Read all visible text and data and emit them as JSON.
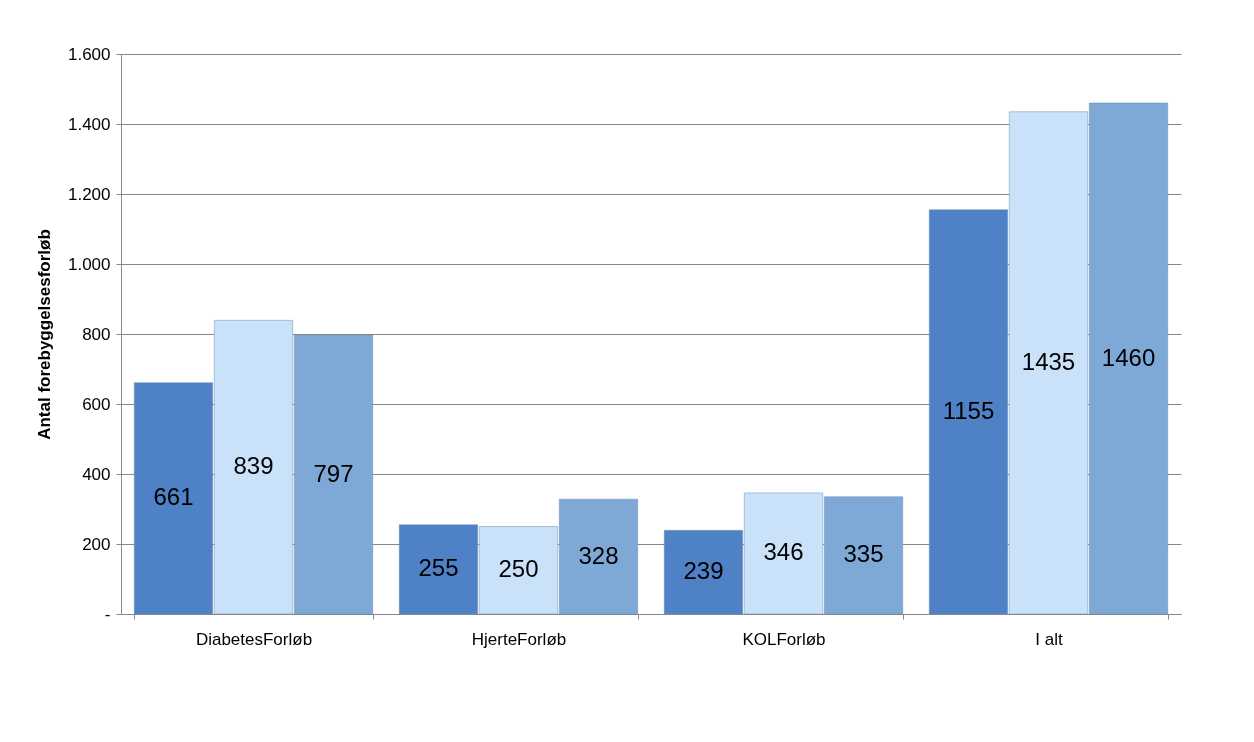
{
  "chart_data": {
    "type": "bar",
    "ylabel": "Antal forebyggelsesforløb",
    "categories": [
      "DiabetesForløb",
      "HjerteForløb",
      "KOLForløb",
      "I alt"
    ],
    "series": [
      {
        "color": "#4f81c7",
        "values": [
          661,
          255,
          239,
          1155
        ]
      },
      {
        "color": "#c9e2fa",
        "values": [
          839,
          250,
          346,
          1435
        ]
      },
      {
        "color": "#7ea8d6",
        "values": [
          797,
          328,
          335,
          1460
        ]
      }
    ],
    "ylim": [
      0,
      1600
    ],
    "yticks": [
      {
        "value": 0,
        "label": "-"
      },
      200,
      400,
      600,
      800,
      {
        "value": 1000,
        "label": "1.000"
      },
      {
        "value": 1200,
        "label": "1.200"
      },
      {
        "value": 1400,
        "label": "1.400"
      },
      {
        "value": 1600,
        "label": "1.600"
      }
    ],
    "grid": "y",
    "data_labels": true
  }
}
